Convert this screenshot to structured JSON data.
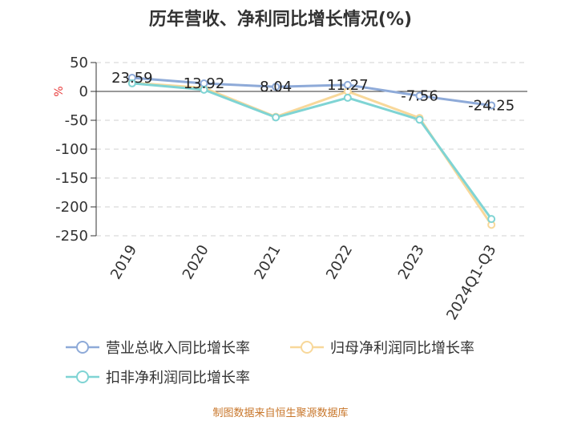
{
  "title": "历年营收、净利同比增长情况(%)",
  "source": "制图数据来自恒生聚源数据库",
  "chart_data": {
    "type": "line",
    "categories": [
      "2019",
      "2020",
      "2021",
      "2022",
      "2023",
      "2024Q1-Q3"
    ],
    "ylabel": "%",
    "ylim": [
      -250,
      50
    ],
    "yticks": [
      50,
      0,
      -50,
      -100,
      -150,
      -200,
      -250
    ],
    "grid": true,
    "legend_position": "bottom",
    "series": [
      {
        "name": "营业总收入同比增长率",
        "color": "#8eaad8",
        "values": [
          23.59,
          13.92,
          8.04,
          11.27,
          -7.56,
          -24.25
        ],
        "labels": [
          "23.59",
          "13.92",
          "8.04",
          "11.27",
          "-7.56",
          "-24.25"
        ]
      },
      {
        "name": "归母净利润同比增长率",
        "color": "#f8d89a",
        "values": [
          15.0,
          6.0,
          -44.0,
          0.0,
          -46.0,
          -231.0
        ]
      },
      {
        "name": "扣非净利润同比增长率",
        "color": "#7fd4d4",
        "values": [
          14.0,
          3.0,
          -45.0,
          -11.0,
          -49.0,
          -221.0
        ]
      }
    ]
  }
}
